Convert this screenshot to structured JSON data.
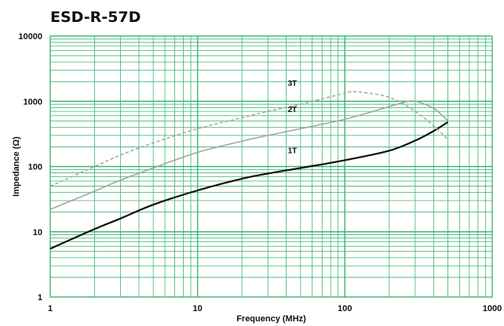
{
  "chart_data": {
    "type": "line",
    "title": "ESD-R-57D",
    "xlabel": "Frequency (MHz)",
    "ylabel": "Impedance (Ω)",
    "x_scale": "log",
    "y_scale": "log",
    "xlim": [
      1,
      1000
    ],
    "ylim": [
      1,
      10000
    ],
    "x_ticks": [
      "1",
      "10",
      "100",
      "1000"
    ],
    "y_ticks": [
      "1",
      "10",
      "100",
      "1000",
      "10000"
    ],
    "grid": true,
    "grid_color": "#3cb371",
    "legend": "inline labels",
    "series": [
      {
        "name": "1T",
        "color": "#111111",
        "style": "solid",
        "x": [
          1,
          2,
          3,
          5,
          10,
          20,
          30,
          50,
          100,
          200,
          300,
          400,
          500
        ],
        "y": [
          5.5,
          11,
          16,
          26,
          43,
          65,
          78,
          95,
          125,
          175,
          250,
          350,
          480
        ]
      },
      {
        "name": "2T",
        "color": "#a0a0a0",
        "style": "solid",
        "x": [
          1,
          2,
          3,
          5,
          10,
          20,
          30,
          50,
          100,
          200,
          250,
          300,
          400,
          500
        ],
        "y": [
          22,
          42,
          62,
          95,
          165,
          245,
          300,
          380,
          530,
          830,
          960,
          1000,
          780,
          500
        ]
      },
      {
        "name": "3T",
        "color": "#a0a0a0",
        "style": "dashed",
        "x": [
          1,
          2,
          3,
          5,
          10,
          20,
          30,
          50,
          100,
          120,
          200,
          300,
          400,
          500
        ],
        "y": [
          50,
          100,
          150,
          230,
          380,
          560,
          700,
          900,
          1330,
          1400,
          1150,
          700,
          420,
          260
        ]
      }
    ]
  }
}
